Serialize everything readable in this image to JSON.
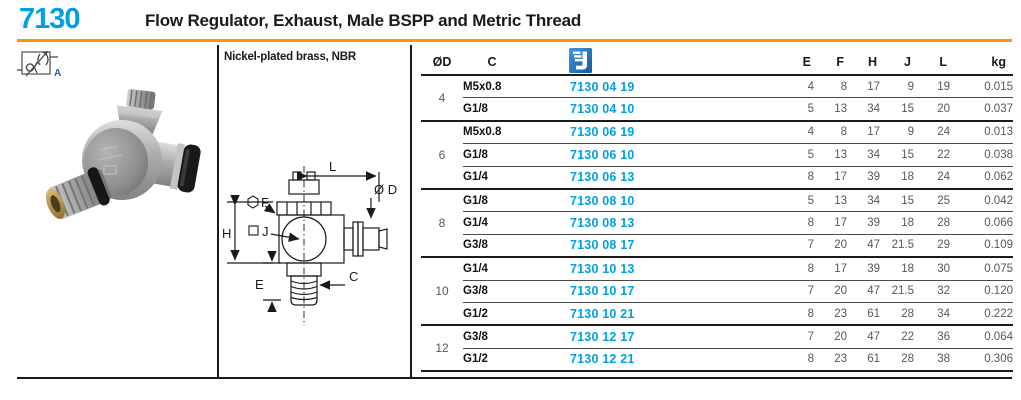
{
  "header": {
    "code": "7130",
    "title": "Flow Regulator, Exhaust, Male BSPP and Metric Thread"
  },
  "left_panel": {
    "symbol_label": "A"
  },
  "specs": {
    "material": "Nickel-plated brass, NBR"
  },
  "diagram": {
    "labels": {
      "l": "L",
      "od": "Ø D",
      "f": "F",
      "j": "J",
      "h": "H",
      "e": "E",
      "c": "C"
    }
  },
  "table": {
    "columns": {
      "od": "ØD",
      "c": "C",
      "e": "E",
      "f": "F",
      "h": "H",
      "j": "J",
      "l": "L",
      "kg": "kg"
    },
    "part_number_icon": "order-number-icon",
    "groups": [
      {
        "od": "4",
        "rows": [
          {
            "c": "M5x0.8",
            "pn": "7130 04 19",
            "e": "4",
            "f": "8",
            "h": "17",
            "j": "9",
            "l": "19",
            "kg": "0.015"
          },
          {
            "c": "G1/8",
            "pn": "7130 04 10",
            "e": "5",
            "f": "13",
            "h": "34",
            "j": "15",
            "l": "20",
            "kg": "0.037"
          }
        ]
      },
      {
        "od": "6",
        "rows": [
          {
            "c": "M5x0.8",
            "pn": "7130 06 19",
            "e": "4",
            "f": "8",
            "h": "17",
            "j": "9",
            "l": "24",
            "kg": "0.013"
          },
          {
            "c": "G1/8",
            "pn": "7130 06 10",
            "e": "5",
            "f": "13",
            "h": "34",
            "j": "15",
            "l": "22",
            "kg": "0.038"
          },
          {
            "c": "G1/4",
            "pn": "7130 06 13",
            "e": "8",
            "f": "17",
            "h": "39",
            "j": "18",
            "l": "24",
            "kg": "0.062"
          }
        ]
      },
      {
        "od": "8",
        "rows": [
          {
            "c": "G1/8",
            "pn": "7130 08 10",
            "e": "5",
            "f": "13",
            "h": "34",
            "j": "15",
            "l": "25",
            "kg": "0.042"
          },
          {
            "c": "G1/4",
            "pn": "7130 08 13",
            "e": "8",
            "f": "17",
            "h": "39",
            "j": "18",
            "l": "28",
            "kg": "0.066"
          },
          {
            "c": "G3/8",
            "pn": "7130 08 17",
            "e": "7",
            "f": "20",
            "h": "47",
            "j": "21.5",
            "l": "29",
            "kg": "0.109"
          }
        ]
      },
      {
        "od": "10",
        "rows": [
          {
            "c": "G1/4",
            "pn": "7130 10 13",
            "e": "8",
            "f": "17",
            "h": "39",
            "j": "18",
            "l": "30",
            "kg": "0.075"
          },
          {
            "c": "G3/8",
            "pn": "7130 10 17",
            "e": "7",
            "f": "20",
            "h": "47",
            "j": "21.5",
            "l": "32",
            "kg": "0.120"
          },
          {
            "c": "G1/2",
            "pn": "7130 10 21",
            "e": "8",
            "f": "23",
            "h": "61",
            "j": "28",
            "l": "34",
            "kg": "0.222"
          }
        ]
      },
      {
        "od": "12",
        "rows": [
          {
            "c": "G3/8",
            "pn": "7130 12 17",
            "e": "7",
            "f": "20",
            "h": "47",
            "j": "22",
            "l": "36",
            "kg": "0.064"
          },
          {
            "c": "G1/2",
            "pn": "7130 12 21",
            "e": "8",
            "f": "23",
            "h": "61",
            "j": "28",
            "l": "38",
            "kg": "0.306"
          }
        ]
      }
    ]
  },
  "colors": {
    "accent_blue": "#00A0E3",
    "rule_orange": "#F59B00",
    "icon_blue": "#1565A8",
    "symbol_a_blue": "#1F63B0",
    "value_gray": "#57575A"
  }
}
